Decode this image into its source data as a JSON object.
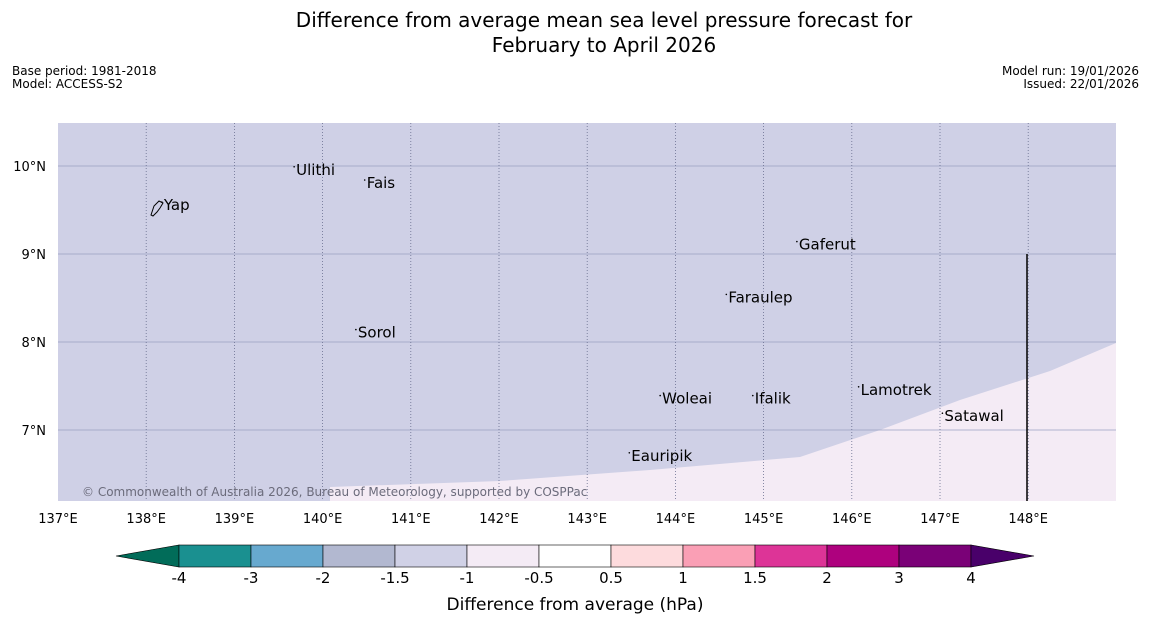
{
  "title": {
    "line1": "Difference from average mean sea level pressure forecast for",
    "line2": "February to April 2026"
  },
  "meta_left": {
    "base_period": "Base period: 1981-2018",
    "model": "Model: ACCESS-S2"
  },
  "meta_right": {
    "model_run": "Model run: 19/01/2026",
    "issued": "Issued: 22/01/2026"
  },
  "map": {
    "lon_range": [
      137,
      149
    ],
    "lat_range": [
      6.2,
      10.5
    ],
    "lon_ticks": [
      "137°E",
      "138°E",
      "139°E",
      "140°E",
      "141°E",
      "142°E",
      "143°E",
      "144°E",
      "145°E",
      "146°E",
      "147°E",
      "148°E"
    ],
    "lat_ticks": [
      "10°N",
      "9°N",
      "8°N",
      "7°N"
    ],
    "colors": {
      "field_main": "#cfd0e6",
      "field_low": "#f4ebf5",
      "gridline": "#9aa0c0"
    },
    "places": [
      {
        "name": "Yap",
        "lon": 138.2,
        "lat": 9.5
      },
      {
        "name": "Ulithi",
        "lon": 139.7,
        "lat": 9.9
      },
      {
        "name": "Fais",
        "lon": 140.5,
        "lat": 9.75
      },
      {
        "name": "Gaferut",
        "lon": 145.4,
        "lat": 9.05
      },
      {
        "name": "Faraulep",
        "lon": 144.6,
        "lat": 8.45
      },
      {
        "name": "Sorol",
        "lon": 140.4,
        "lat": 8.05
      },
      {
        "name": "Lamotrek",
        "lon": 146.1,
        "lat": 7.4
      },
      {
        "name": "Satawal",
        "lon": 147.05,
        "lat": 7.1
      },
      {
        "name": "Woleai",
        "lon": 143.85,
        "lat": 7.3
      },
      {
        "name": "Ifalik",
        "lon": 144.9,
        "lat": 7.3
      },
      {
        "name": "Eauripik",
        "lon": 143.5,
        "lat": 6.65
      }
    ],
    "copyright": "© Commonwealth of Australia 2026, Bureau of Meteorology, supported by COSPPac"
  },
  "colorbar": {
    "label": "Difference from average (hPa)",
    "ticks": [
      "-4",
      "-3",
      "-2",
      "-1.5",
      "-1",
      "-0.5",
      "0.5",
      "1",
      "1.5",
      "2",
      "3",
      "4"
    ],
    "colors": [
      "#016c59",
      "#1a9090",
      "#67a9cf",
      "#b2b8d0",
      "#d0d1e6",
      "#f4ebf5",
      "#ffffff",
      "#fddbdd",
      "#fa9fb5",
      "#dd3497",
      "#ae017e",
      "#7a0177",
      "#49006a"
    ]
  }
}
